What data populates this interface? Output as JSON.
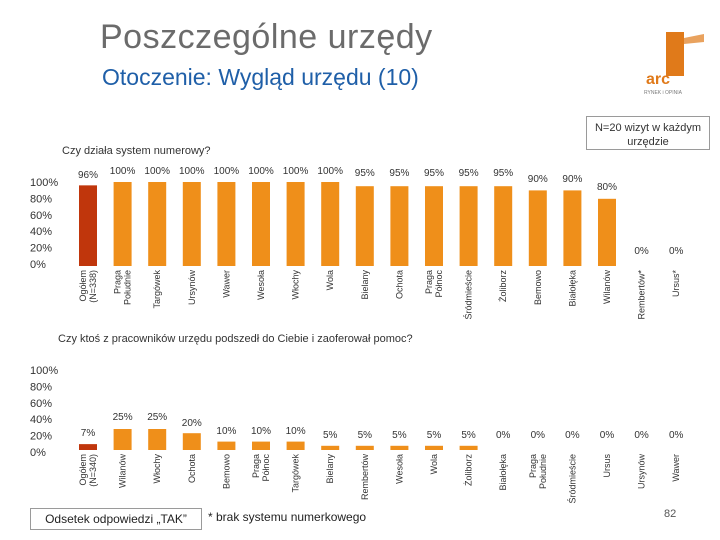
{
  "title": "Poszczególne urzędy",
  "subtitle": "Otoczenie: Wygląd urzędu (10)",
  "note": "N=20 wizyt w każdym urzędzie",
  "footnote_box": "Odsetek odpowiedzi „TAK”",
  "asterisk_note": "* brak systemu numerkowego",
  "page_number": "82",
  "logo": {
    "text": "arc",
    "tagline": "RYNEK i OPINIA"
  },
  "colors": {
    "highlight": "#c0360c",
    "bar": "#ef8f1a",
    "title": "#6b6b6b",
    "subtitle": "#1f5fa8"
  },
  "chart_data": [
    {
      "type": "bar",
      "title": "Czy działa system numerowy?",
      "y_ticks": [
        "100%",
        "80%",
        "60%",
        "40%",
        "20%",
        "0%"
      ],
      "ylim": [
        0,
        100
      ],
      "categories": [
        "Ogółem (N=338)",
        "Praga Południe",
        "Targówek",
        "Ursynów",
        "Wawer",
        "Wesoła",
        "Włochy",
        "Wola",
        "Bielany",
        "Ochota",
        "Praga Północ",
        "Śródmieście",
        "Żoliborz",
        "Bemowo",
        "Białołęka",
        "Wilanów",
        "Rembertów*",
        "Ursus*"
      ],
      "values": [
        96,
        100,
        100,
        100,
        100,
        100,
        100,
        100,
        95,
        95,
        95,
        95,
        95,
        90,
        90,
        80,
        0,
        0
      ],
      "labels": [
        "96%",
        "100%",
        "100%",
        "100%",
        "100%",
        "100%",
        "100%",
        "100%",
        "95%",
        "95%",
        "95%",
        "95%",
        "95%",
        "90%",
        "90%",
        "80%",
        "0%",
        "0%"
      ]
    },
    {
      "type": "bar",
      "title": "Czy ktoś z pracowników urzędu podszedł do Ciebie i zaoferował pomoc?",
      "y_ticks": [
        "100%",
        "80%",
        "60%",
        "40%",
        "20%",
        "0%"
      ],
      "ylim": [
        0,
        100
      ],
      "categories": [
        "Ogółem (N=340)",
        "Wilanów",
        "Włochy",
        "Ochota",
        "Bemowo",
        "Praga Północ",
        "Targówek",
        "Bielany",
        "Rembertów",
        "Wesoła",
        "Wola",
        "Żoliborz",
        "Białołęka",
        "Praga Południe",
        "Śródmieście",
        "Ursus",
        "Ursynów",
        "Wawer"
      ],
      "values": [
        7,
        25,
        25,
        20,
        10,
        10,
        10,
        5,
        5,
        5,
        5,
        5,
        0,
        0,
        0,
        0,
        0,
        0
      ],
      "labels": [
        "7%",
        "25%",
        "25%",
        "20%",
        "10%",
        "10%",
        "10%",
        "5%",
        "5%",
        "5%",
        "5%",
        "5%",
        "0%",
        "0%",
        "0%",
        "0%",
        "0%",
        "0%"
      ]
    }
  ]
}
